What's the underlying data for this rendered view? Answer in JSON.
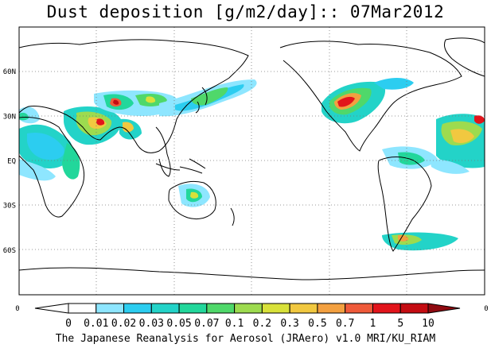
{
  "title": "Dust deposition [g/m2/day]:: 07Mar2012",
  "footer": "The Japanese Reanalysis for Aerosol (JRAero) v1.0 MRI/KU_RIAM",
  "lat_labels": [
    "60N",
    "30N",
    "EQ",
    "30S",
    "60S"
  ],
  "lat_values": [
    60,
    30,
    0,
    -30,
    -60
  ],
  "lat_range": [
    -90,
    90
  ],
  "lon_edge_labels": {
    "left": "0",
    "right": "0"
  },
  "colorbar": {
    "labels": [
      "0",
      "0.01",
      "0.02",
      "0.03",
      "0.05",
      "0.07",
      "0.1",
      "0.2",
      "0.3",
      "0.5",
      "0.7",
      "1",
      "5",
      "10"
    ],
    "colors": [
      "#ffffff",
      "#8ee6ff",
      "#2ccdf0",
      "#23d3c8",
      "#22d79b",
      "#4fd86a",
      "#9ddb4f",
      "#d8e13a",
      "#f1c840",
      "#f3a040",
      "#ef5a3a",
      "#e2141b",
      "#c40c12",
      "#8f0a10"
    ]
  },
  "map": {
    "projection": "cylindrical, central meridian 180",
    "land_stroke": "#000000",
    "grid": "dotted, 60 deg longitude / 30 deg latitude"
  }
}
